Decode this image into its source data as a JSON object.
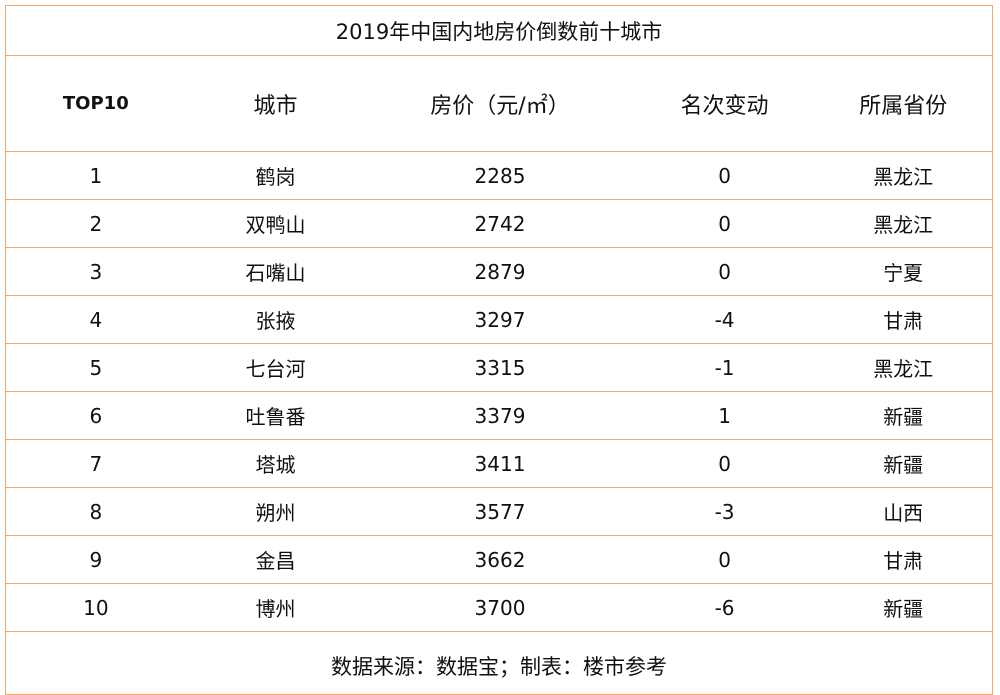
{
  "title": "2019年中国内地房价倒数前十城市",
  "table": {
    "header": [
      "TOP10",
      "城市",
      "房价（元/㎡）",
      "名次变动",
      "所属省份"
    ],
    "rows": [
      [
        "1",
        "鹤岗",
        "2285",
        "0",
        "黑龙江"
      ],
      [
        "2",
        "双鸭山",
        "2742",
        "0",
        "黑龙江"
      ],
      [
        "3",
        "石嘴山",
        "2879",
        "0",
        "宁夏"
      ],
      [
        "4",
        "张掖",
        "3297",
        "-4",
        "甘肃"
      ],
      [
        "5",
        "七台河",
        "3315",
        "-1",
        "黑龙江"
      ],
      [
        "6",
        "吐鲁番",
        "3379",
        "1",
        "新疆"
      ],
      [
        "7",
        "塔城",
        "3411",
        "0",
        "新疆"
      ],
      [
        "8",
        "朔州",
        "3577",
        "-3",
        "山西"
      ],
      [
        "9",
        "金昌",
        "3662",
        "0",
        "甘肃"
      ],
      [
        "10",
        "博州",
        "3700",
        "-6",
        "新疆"
      ]
    ]
  },
  "footer": "数据来源：数据宝；制表：楼市参考"
}
